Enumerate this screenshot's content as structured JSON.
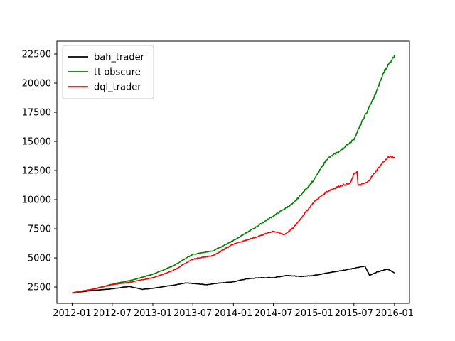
{
  "chart_data": {
    "type": "line",
    "title": "",
    "xlabel": "",
    "ylabel": "",
    "xlim": [
      "2011-10-24",
      "2016-03-09"
    ],
    "ylim": [
      1100,
      23600
    ],
    "x_ticks": [
      "2012-01",
      "2012-07",
      "2013-01",
      "2013-07",
      "2014-01",
      "2014-07",
      "2015-01",
      "2015-07",
      "2016-01"
    ],
    "y_ticks": [
      2500,
      5000,
      7500,
      10000,
      12500,
      15000,
      17500,
      20000,
      22500
    ],
    "grid": false,
    "legend": {
      "position": "top-left"
    },
    "series": [
      {
        "name": "bah_trader",
        "color": "#000000",
        "points": [
          [
            "2012-01-01",
            2000
          ],
          [
            "2012-04-01",
            2200
          ],
          [
            "2012-07-01",
            2350
          ],
          [
            "2012-09-15",
            2550
          ],
          [
            "2012-11-15",
            2300
          ],
          [
            "2013-01-01",
            2400
          ],
          [
            "2013-04-01",
            2650
          ],
          [
            "2013-06-01",
            2850
          ],
          [
            "2013-09-01",
            2700
          ],
          [
            "2013-11-01",
            2850
          ],
          [
            "2014-01-01",
            2950
          ],
          [
            "2014-03-01",
            3200
          ],
          [
            "2014-05-01",
            3300
          ],
          [
            "2014-07-01",
            3300
          ],
          [
            "2014-09-01",
            3500
          ],
          [
            "2014-11-01",
            3400
          ],
          [
            "2015-01-01",
            3500
          ],
          [
            "2015-03-01",
            3700
          ],
          [
            "2015-05-01",
            3900
          ],
          [
            "2015-07-01",
            4100
          ],
          [
            "2015-08-20",
            4300
          ],
          [
            "2015-09-10",
            3500
          ],
          [
            "2015-10-15",
            3800
          ],
          [
            "2015-12-01",
            4050
          ],
          [
            "2016-01-01",
            3700
          ]
        ]
      },
      {
        "name": "tt obscure",
        "color": "#008000",
        "points": [
          [
            "2012-01-01",
            2000
          ],
          [
            "2012-04-01",
            2300
          ],
          [
            "2012-07-01",
            2750
          ],
          [
            "2012-10-01",
            3100
          ],
          [
            "2013-01-01",
            3600
          ],
          [
            "2013-04-01",
            4300
          ],
          [
            "2013-07-01",
            5300
          ],
          [
            "2013-10-01",
            5600
          ],
          [
            "2014-01-01",
            6500
          ],
          [
            "2014-04-01",
            7500
          ],
          [
            "2014-07-01",
            8600
          ],
          [
            "2014-10-01",
            9700
          ],
          [
            "2015-01-01",
            11700
          ],
          [
            "2015-03-01",
            13500
          ],
          [
            "2015-05-01",
            14200
          ],
          [
            "2015-07-01",
            15200
          ],
          [
            "2015-08-15",
            17000
          ],
          [
            "2015-10-01",
            18800
          ],
          [
            "2015-11-15",
            21000
          ],
          [
            "2016-01-01",
            22400
          ]
        ]
      },
      {
        "name": "dql_trader",
        "color": "#ff0000",
        "points": [
          [
            "2012-01-01",
            2000
          ],
          [
            "2012-04-01",
            2300
          ],
          [
            "2012-07-01",
            2700
          ],
          [
            "2012-10-01",
            2950
          ],
          [
            "2013-01-01",
            3300
          ],
          [
            "2013-04-01",
            3900
          ],
          [
            "2013-07-01",
            4900
          ],
          [
            "2013-10-01",
            5200
          ],
          [
            "2014-01-01",
            6200
          ],
          [
            "2014-04-01",
            6700
          ],
          [
            "2014-07-01",
            7300
          ],
          [
            "2014-08-20",
            7000
          ],
          [
            "2014-10-01",
            7600
          ],
          [
            "2014-11-15",
            8700
          ],
          [
            "2015-01-01",
            9800
          ],
          [
            "2015-03-01",
            10700
          ],
          [
            "2015-05-01",
            11200
          ],
          [
            "2015-06-15",
            11400
          ],
          [
            "2015-07-01",
            12200
          ],
          [
            "2015-07-15",
            12400
          ],
          [
            "2015-07-20",
            11200
          ],
          [
            "2015-09-01",
            11500
          ],
          [
            "2015-10-15",
            12600
          ],
          [
            "2015-11-15",
            13300
          ],
          [
            "2015-12-10",
            13700
          ],
          [
            "2016-01-01",
            13600
          ]
        ]
      }
    ]
  }
}
